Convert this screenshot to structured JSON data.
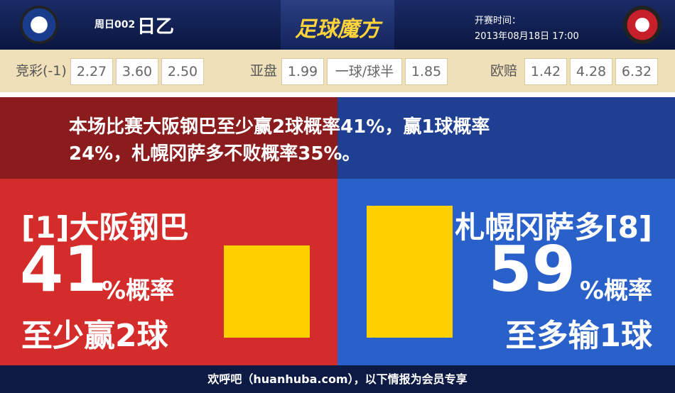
{
  "header": {
    "match_no": "周日002",
    "league": "日乙",
    "brand": "足球魔方",
    "kickoff_label": "开赛时间：",
    "kickoff_time": "2013年08月18日 17:00"
  },
  "odds": {
    "jingcai": {
      "label": "竞彩(-1)",
      "values": [
        "2.27",
        "3.60",
        "2.50"
      ]
    },
    "asian": {
      "label": "亚盘",
      "home": "1.99",
      "line": "一球/球半",
      "away": "1.85"
    },
    "euro": {
      "label": "欧赔",
      "values": [
        "1.42",
        "4.28",
        "6.32"
      ]
    }
  },
  "summary": "本场比赛大阪钢巴至少赢2球概率41%，赢1球概率24%，札幌冈萨多不败概率35%。",
  "panels": {
    "home": {
      "team": "[1]大阪钢巴",
      "percent": 41,
      "unit": "%概率",
      "outcome": "至少赢2球"
    },
    "away": {
      "team": "札幌冈萨多[8]",
      "percent": 59,
      "unit": "%概率",
      "outcome": "至多输1球"
    }
  },
  "footer": "欢呼吧（huanhuba.com），以下情报为会员专享"
}
